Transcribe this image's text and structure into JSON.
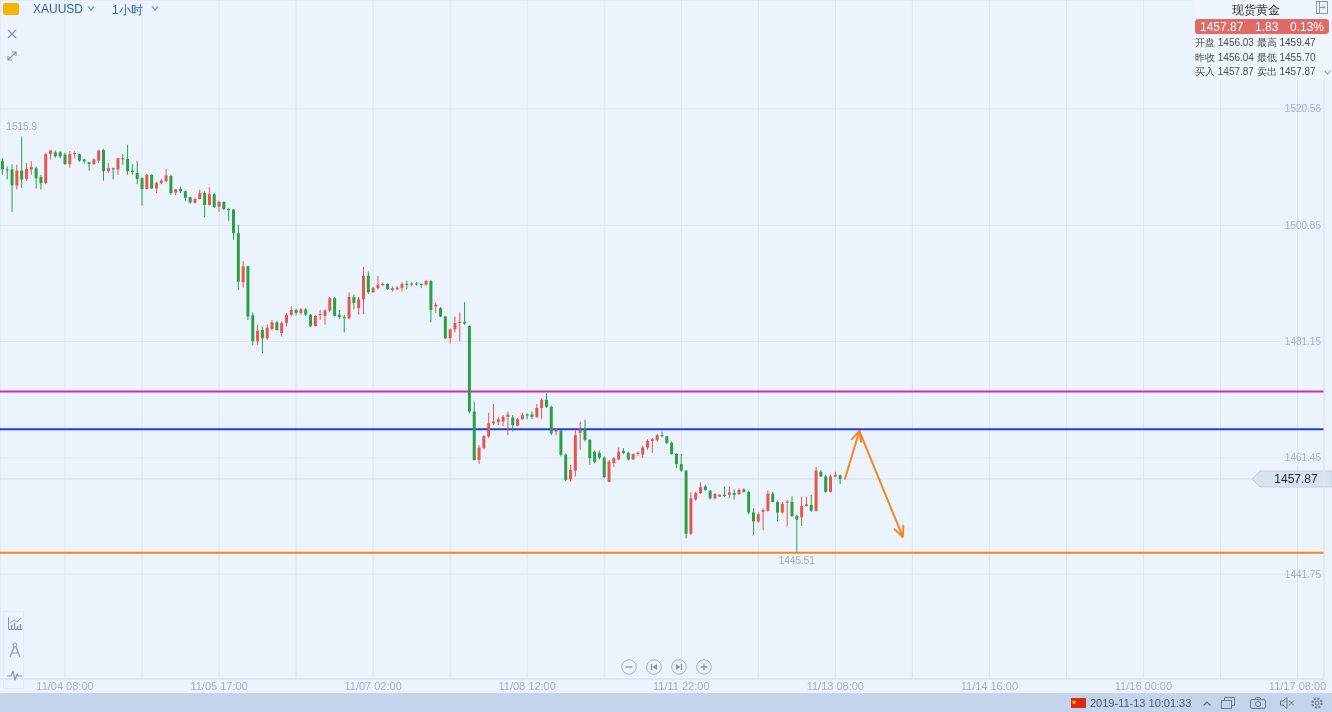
{
  "chart_data": {
    "type": "candlestick",
    "title": "XAUUSD",
    "subtitle": "1小时",
    "categories": [
      null,
      null,
      null,
      null,
      null,
      null,
      null,
      null,
      null,
      null,
      null,
      null,
      null,
      "11/04 08:00",
      null,
      null,
      null,
      null,
      null,
      null,
      null,
      null,
      null,
      null,
      null,
      null,
      null,
      null,
      null,
      null,
      null,
      null,
      null,
      null,
      null,
      null,
      null,
      null,
      null,
      null,
      null,
      null,
      null,
      null,
      null,
      "11/05 17:00",
      null,
      null,
      null,
      null,
      null,
      null,
      null,
      null,
      null,
      null,
      null,
      null,
      null,
      null,
      null,
      null,
      null,
      null,
      null,
      null,
      null,
      null,
      null,
      null,
      null,
      null,
      null,
      null,
      null,
      null,
      null,
      "11/07 02:00",
      null,
      null,
      null,
      null,
      null,
      null,
      null,
      null,
      null,
      null,
      null,
      null,
      null,
      null,
      null,
      null,
      null,
      null,
      null,
      null,
      null,
      null,
      null,
      null,
      null,
      null,
      null,
      null,
      null,
      null,
      null,
      "11/08 12:00",
      null,
      null,
      null,
      null,
      null,
      null,
      null,
      null,
      null,
      null,
      null,
      null,
      null,
      null,
      null,
      null,
      null,
      null,
      null,
      null,
      null,
      null,
      null,
      null,
      null,
      null,
      null,
      null,
      null,
      null,
      null,
      "11/11 22:00",
      null,
      null,
      null,
      null,
      null,
      null,
      null,
      null,
      null,
      null,
      null,
      null,
      null,
      null,
      null,
      null,
      null,
      null,
      null,
      null,
      null,
      null,
      null,
      null,
      null,
      null,
      null,
      null,
      null,
      null,
      null,
      "11/13 08:00",
      null,
      null,
      null,
      null,
      null,
      null,
      null,
      null,
      null,
      null,
      null,
      null,
      null,
      null,
      null,
      null,
      null,
      null,
      null,
      null,
      null,
      null,
      null,
      null,
      null,
      null,
      null,
      null,
      null,
      null,
      null,
      "11/14 16:00",
      null,
      null,
      null,
      null,
      null,
      null,
      null,
      null,
      null,
      null,
      null,
      null,
      null,
      null,
      null,
      null,
      null,
      null,
      null,
      null,
      null,
      null,
      null,
      null,
      null,
      null,
      null,
      null,
      null,
      null,
      null,
      "11/16 00:00",
      null,
      null,
      null,
      null,
      null,
      null,
      null,
      null,
      null,
      null,
      null,
      null,
      null,
      null,
      null,
      null,
      null,
      null,
      null,
      null,
      null,
      null,
      null,
      null,
      null,
      null,
      null,
      null,
      null,
      null,
      null,
      "11/17 08:00",
      null,
      null,
      null,
      null,
      null
    ],
    "ohlc": [
      [
        1511.7,
        1512.2,
        1509.4,
        1510.3
      ],
      [
        1510.3,
        1510.8,
        1508.6,
        1510.2
      ],
      [
        1510.3,
        1511.2,
        1503.1,
        1507.6
      ],
      [
        1507.6,
        1511.1,
        1506.9,
        1510.1
      ],
      [
        1510.1,
        1515.9,
        1507.1,
        1508.6
      ],
      [
        1508.7,
        1511.4,
        1508.3,
        1510.4
      ],
      [
        1510.3,
        1511.7,
        1509.4,
        1510.7
      ],
      [
        1510.5,
        1510.8,
        1507.1,
        1508.8
      ],
      [
        1509.0,
        1509.4,
        1506.9,
        1508.0
      ],
      [
        1508.0,
        1513.1,
        1507.8,
        1512.9
      ],
      [
        1512.9,
        1513.6,
        1512.0,
        1513.5
      ],
      [
        1513.2,
        1513.5,
        1512.3,
        1512.5
      ],
      [
        1513.2,
        1513.4,
        1512.2,
        1512.5
      ],
      [
        1512.8,
        1513.1,
        1511.1,
        1511.2
      ],
      [
        1511.2,
        1513.4,
        1510.6,
        1512.9
      ],
      [
        1512.9,
        1513.4,
        1512.2,
        1513.1
      ],
      [
        1512.9,
        1513.0,
        1511.6,
        1511.8
      ],
      [
        1512.0,
        1512.1,
        1511.3,
        1511.7
      ],
      [
        1511.5,
        1511.6,
        1510.1,
        1511.2
      ],
      [
        1511.2,
        1512.2,
        1511.1,
        1512.0
      ],
      [
        1511.8,
        1513.6,
        1511.4,
        1513.5
      ],
      [
        1513.6,
        1513.8,
        1508.4,
        1510.0
      ],
      [
        1510.0,
        1511.4,
        1509.7,
        1510.5
      ],
      [
        1510.5,
        1510.6,
        1508.6,
        1510.3
      ],
      [
        1510.3,
        1512.3,
        1509.4,
        1512.2
      ],
      [
        1512.2,
        1512.9,
        1511.1,
        1512.1
      ],
      [
        1512.1,
        1514.5,
        1509.4,
        1510.0
      ],
      [
        1510.1,
        1511.2,
        1509.4,
        1509.9
      ],
      [
        1509.7,
        1511.7,
        1507.8,
        1508.7
      ],
      [
        1508.8,
        1509.0,
        1504.2,
        1507.0
      ],
      [
        1507.0,
        1509.5,
        1506.9,
        1509.4
      ],
      [
        1509.4,
        1509.5,
        1507.0,
        1507.1
      ],
      [
        1507.1,
        1508.2,
        1506.3,
        1508.0
      ],
      [
        1508.0,
        1508.7,
        1507.8,
        1508.4
      ],
      [
        1508.3,
        1510.4,
        1508.2,
        1509.3
      ],
      [
        1509.2,
        1509.4,
        1506.0,
        1506.3
      ],
      [
        1506.4,
        1507.0,
        1505.9,
        1506.9
      ],
      [
        1507.0,
        1507.4,
        1506.3,
        1506.6
      ],
      [
        1506.6,
        1506.7,
        1505.0,
        1505.5
      ],
      [
        1505.6,
        1505.7,
        1504.5,
        1504.7
      ],
      [
        1504.7,
        1505.5,
        1504.5,
        1505.3
      ],
      [
        1505.3,
        1506.9,
        1505.2,
        1506.3
      ],
      [
        1506.3,
        1506.6,
        1502.2,
        1504.3
      ],
      [
        1504.3,
        1507.3,
        1504.2,
        1506.1
      ],
      [
        1506.1,
        1506.3,
        1503.8,
        1503.9
      ],
      [
        1504.0,
        1505.0,
        1503.1,
        1504.8
      ],
      [
        1504.8,
        1504.9,
        1503.4,
        1503.6
      ],
      [
        1503.6,
        1503.8,
        1501.6,
        1503.4
      ],
      [
        1503.5,
        1503.6,
        1498.4,
        1499.5
      ],
      [
        1499.5,
        1500.9,
        1489.9,
        1491.3
      ],
      [
        1491.2,
        1494.8,
        1490.3,
        1493.9
      ],
      [
        1493.9,
        1494.0,
        1484.8,
        1485.4
      ],
      [
        1485.6,
        1486.1,
        1480.5,
        1481.2
      ],
      [
        1481.2,
        1484.0,
        1480.6,
        1483.0
      ],
      [
        1483.1,
        1483.7,
        1479.2,
        1481.7
      ],
      [
        1481.7,
        1484.0,
        1481.4,
        1483.5
      ],
      [
        1483.3,
        1484.8,
        1483.0,
        1484.4
      ],
      [
        1484.4,
        1484.6,
        1483.0,
        1483.1
      ],
      [
        1482.6,
        1484.6,
        1482.0,
        1484.3
      ],
      [
        1484.3,
        1486.0,
        1483.7,
        1485.7
      ],
      [
        1485.7,
        1487.1,
        1485.4,
        1486.5
      ],
      [
        1486.5,
        1486.7,
        1485.6,
        1486.0
      ],
      [
        1486.0,
        1486.8,
        1485.7,
        1486.6
      ],
      [
        1486.6,
        1486.8,
        1485.5,
        1485.7
      ],
      [
        1485.7,
        1485.8,
        1483.6,
        1483.8
      ],
      [
        1483.8,
        1485.7,
        1483.7,
        1485.5
      ],
      [
        1485.7,
        1486.5,
        1484.8,
        1485.8
      ],
      [
        1485.5,
        1486.6,
        1484.0,
        1486.4
      ],
      [
        1486.4,
        1488.7,
        1486.1,
        1488.5
      ],
      [
        1488.5,
        1488.7,
        1485.4,
        1485.5
      ],
      [
        1485.7,
        1486.5,
        1484.9,
        1485.3
      ],
      [
        1485.3,
        1485.7,
        1482.7,
        1485.1
      ],
      [
        1485.1,
        1489.5,
        1484.9,
        1488.7
      ],
      [
        1488.7,
        1489.1,
        1486.6,
        1487.7
      ],
      [
        1486.8,
        1488.7,
        1485.7,
        1488.3
      ],
      [
        1488.3,
        1493.8,
        1485.8,
        1492.3
      ],
      [
        1492.3,
        1493.0,
        1489.2,
        1489.5
      ],
      [
        1489.5,
        1490.4,
        1489.4,
        1490.2
      ],
      [
        1490.2,
        1492.3,
        1490.0,
        1490.8
      ],
      [
        1490.8,
        1491.2,
        1490.5,
        1490.9
      ],
      [
        1490.9,
        1491.0,
        1489.9,
        1490.0
      ],
      [
        1489.9,
        1490.5,
        1489.6,
        1490.2
      ],
      [
        1490.0,
        1490.5,
        1489.9,
        1490.3
      ],
      [
        1490.2,
        1491.2,
        1489.6,
        1490.9
      ],
      [
        1490.9,
        1491.5,
        1490.0,
        1490.8
      ],
      [
        1490.8,
        1491.2,
        1490.5,
        1491.0
      ],
      [
        1491.0,
        1491.2,
        1490.6,
        1490.9
      ],
      [
        1490.9,
        1491.0,
        1490.2,
        1490.8
      ],
      [
        1490.8,
        1491.6,
        1490.6,
        1491.4
      ],
      [
        1491.4,
        1491.6,
        1484.4,
        1486.5
      ],
      [
        1487.1,
        1487.8,
        1486.0,
        1487.4
      ],
      [
        1486.8,
        1487.0,
        1485.3,
        1485.4
      ],
      [
        1485.4,
        1485.5,
        1481.6,
        1481.7
      ],
      [
        1481.7,
        1483.4,
        1480.8,
        1483.2
      ],
      [
        1483.2,
        1485.4,
        1482.7,
        1484.3
      ],
      [
        1484.3,
        1486.1,
        1481.2,
        1484.5
      ],
      [
        1484.5,
        1487.8,
        1484.0,
        1484.2
      ],
      [
        1483.8,
        1483.9,
        1469.0,
        1469.3
      ],
      [
        1469.3,
        1471.0,
        1461.0,
        1461.1
      ],
      [
        1461.1,
        1463.6,
        1460.4,
        1463.2
      ],
      [
        1463.1,
        1465.3,
        1462.9,
        1465.1
      ],
      [
        1465.1,
        1469.1,
        1464.8,
        1467.3
      ],
      [
        1467.3,
        1470.6,
        1467.0,
        1467.6
      ],
      [
        1467.5,
        1468.4,
        1467.0,
        1468.0
      ],
      [
        1467.6,
        1468.7,
        1466.8,
        1468.4
      ],
      [
        1468.4,
        1469.3,
        1465.3,
        1468.8
      ],
      [
        1468.3,
        1468.7,
        1465.9,
        1467.0
      ],
      [
        1466.9,
        1468.2,
        1466.8,
        1468.0
      ],
      [
        1468.0,
        1469.0,
        1467.9,
        1468.7
      ],
      [
        1468.8,
        1469.0,
        1468.0,
        1468.6
      ],
      [
        1468.8,
        1469.3,
        1468.0,
        1468.4
      ],
      [
        1468.4,
        1470.6,
        1468.2,
        1469.9
      ],
      [
        1469.9,
        1471.6,
        1468.0,
        1471.3
      ],
      [
        1471.3,
        1472.4,
        1469.9,
        1470.1
      ],
      [
        1470.1,
        1470.3,
        1465.3,
        1465.6
      ],
      [
        1465.9,
        1466.5,
        1465.3,
        1466.2
      ],
      [
        1466.1,
        1466.2,
        1461.7,
        1462.0
      ],
      [
        1462.0,
        1462.2,
        1457.5,
        1457.7
      ],
      [
        1457.8,
        1460.3,
        1457.4,
        1459.4
      ],
      [
        1459.3,
        1466.2,
        1458.3,
        1465.3
      ],
      [
        1465.7,
        1467.6,
        1462.8,
        1466.2
      ],
      [
        1466.2,
        1467.9,
        1464.2,
        1464.5
      ],
      [
        1464.5,
        1464.6,
        1460.3,
        1461.4
      ],
      [
        1462.5,
        1462.7,
        1460.5,
        1460.8
      ],
      [
        1462.3,
        1462.7,
        1461.2,
        1461.5
      ],
      [
        1461.5,
        1461.7,
        1458.0,
        1458.2
      ],
      [
        1457.4,
        1461.1,
        1457.3,
        1460.8
      ],
      [
        1460.6,
        1461.6,
        1459.9,
        1461.4
      ],
      [
        1461.2,
        1463.2,
        1461.1,
        1462.5
      ],
      [
        1462.6,
        1463.1,
        1462.1,
        1462.3
      ],
      [
        1462.3,
        1462.5,
        1461.0,
        1461.2
      ],
      [
        1461.2,
        1462.2,
        1461.1,
        1462.1
      ],
      [
        1462.1,
        1462.5,
        1461.8,
        1462.3
      ],
      [
        1462.0,
        1463.5,
        1461.4,
        1463.2
      ],
      [
        1463.2,
        1464.6,
        1462.8,
        1464.3
      ],
      [
        1464.3,
        1464.8,
        1462.3,
        1464.6
      ],
      [
        1464.5,
        1465.5,
        1464.2,
        1465.3
      ],
      [
        1465.3,
        1465.9,
        1464.9,
        1465.2
      ],
      [
        1465.1,
        1465.2,
        1463.8,
        1464.0
      ],
      [
        1464.0,
        1464.2,
        1462.0,
        1462.1
      ],
      [
        1462.1,
        1462.3,
        1459.7,
        1460.4
      ],
      [
        1460.4,
        1462.1,
        1459.1,
        1459.3
      ],
      [
        1459.3,
        1459.4,
        1447.8,
        1448.6
      ],
      [
        1448.6,
        1455.6,
        1448.4,
        1454.6
      ],
      [
        1454.4,
        1455.7,
        1454.2,
        1455.5
      ],
      [
        1455.5,
        1457.3,
        1455.3,
        1456.5
      ],
      [
        1456.6,
        1456.9,
        1455.9,
        1456.0
      ],
      [
        1455.9,
        1456.0,
        1454.4,
        1454.6
      ],
      [
        1454.6,
        1455.5,
        1454.4,
        1455.3
      ],
      [
        1454.9,
        1455.3,
        1454.8,
        1455.2
      ],
      [
        1455.2,
        1456.6,
        1454.8,
        1455.0
      ],
      [
        1455.2,
        1456.6,
        1454.6,
        1455.6
      ],
      [
        1455.5,
        1456.1,
        1454.4,
        1455.2
      ],
      [
        1455.3,
        1456.3,
        1455.2,
        1456.0
      ],
      [
        1456.1,
        1456.3,
        1455.6,
        1455.7
      ],
      [
        1455.7,
        1455.9,
        1451.9,
        1452.2
      ],
      [
        1452.2,
        1452.9,
        1448.4,
        1450.7
      ],
      [
        1450.7,
        1452.2,
        1450.5,
        1451.9
      ],
      [
        1452.3,
        1452.9,
        1449.2,
        1452.6
      ],
      [
        1452.5,
        1455.9,
        1452.3,
        1455.4
      ],
      [
        1455.4,
        1455.7,
        1453.9,
        1454.0
      ],
      [
        1454.0,
        1454.2,
        1450.7,
        1452.2
      ],
      [
        1452.2,
        1454.0,
        1452.0,
        1453.7
      ],
      [
        1453.9,
        1454.4,
        1449.8,
        1454.0
      ],
      [
        1454.0,
        1454.9,
        1451.4,
        1451.6
      ],
      [
        1451.6,
        1451.8,
        1445.51,
        1451.0
      ],
      [
        1451.4,
        1454.9,
        1449.9,
        1453.3
      ],
      [
        1453.3,
        1454.9,
        1453.2,
        1453.6
      ],
      [
        1453.5,
        1455.2,
        1452.3,
        1452.5
      ],
      [
        1452.5,
        1459.9,
        1452.3,
        1459.3
      ],
      [
        1459.1,
        1459.4,
        1458.2,
        1458.3
      ],
      [
        1458.3,
        1458.6,
        1455.6,
        1455.7
      ],
      [
        1455.7,
        1458.6,
        1455.6,
        1458.3
      ],
      [
        1458.3,
        1459.1,
        1458.2,
        1458.6
      ],
      [
        1458.5,
        1458.6,
        1457.0,
        1457.87
      ],
      null,
      null,
      null,
      null,
      null,
      null,
      null,
      null,
      null,
      null,
      null,
      null,
      null,
      null,
      null,
      null,
      null,
      null,
      null,
      null,
      null,
      null,
      null,
      null,
      null,
      null,
      null,
      null,
      null,
      null,
      null,
      null,
      null,
      null,
      null,
      null,
      null,
      null,
      null,
      null,
      null,
      null,
      null,
      null,
      null,
      null,
      null,
      null,
      null,
      null,
      null,
      null,
      null,
      null,
      null,
      null,
      null,
      null,
      null,
      null,
      null,
      null,
      null,
      null,
      null,
      null,
      null,
      null,
      null,
      null,
      null,
      null,
      null,
      null,
      null,
      null,
      null,
      null,
      null,
      null,
      null,
      null,
      null,
      null,
      null,
      null,
      null,
      null,
      null,
      null,
      null,
      null,
      null,
      null,
      null,
      null,
      null,
      null,
      null,
      null
    ],
    "colors": [
      "#2e9e45",
      "#2e9e45",
      "#2e9e45",
      "#e5564f",
      "#2e9e45",
      "#e5564f",
      "#e5564f",
      "#2e9e45",
      "#2e9e45",
      "#e5564f",
      "#e5564f",
      "#2e9e45",
      "#2e9e45",
      "#2e9e45",
      "#e5564f",
      "#e5564f",
      "#2e9e45",
      "#2e9e45",
      "#2e9e45",
      "#e5564f",
      "#e5564f",
      "#2e9e45",
      "#e5564f",
      "#2e9e45",
      "#e5564f",
      "#2e9e45",
      "#2e9e45",
      "#2e9e45",
      "#2e9e45",
      "#2e9e45",
      "#e5564f",
      "#2e9e45",
      "#e5564f",
      "#e5564f",
      "#e5564f",
      "#2e9e45",
      "#e5564f",
      "#2e9e45",
      "#2e9e45",
      "#2e9e45",
      "#e5564f",
      "#e5564f",
      "#2e9e45",
      "#e5564f",
      "#2e9e45",
      "#e5564f",
      "#2e9e45",
      "#2e9e45",
      "#2e9e45",
      "#2e9e45",
      "#e5564f",
      "#2e9e45",
      "#2e9e45",
      "#e5564f",
      "#2e9e45",
      "#e5564f",
      "#e5564f",
      "#2e9e45",
      "#e5564f",
      "#e5564f",
      "#e5564f",
      "#2e9e45",
      "#e5564f",
      "#2e9e45",
      "#2e9e45",
      "#e5564f",
      "#e5564f",
      "#e5564f",
      "#e5564f",
      "#2e9e45",
      "#2e9e45",
      "#2e9e45",
      "#e5564f",
      "#2e9e45",
      "#e5564f",
      "#e5564f",
      "#2e9e45",
      "#e5564f",
      "#e5564f",
      "#e5564f",
      "#2e9e45",
      "#e5564f",
      "#e5564f",
      "#e5564f",
      "#2e9e45",
      "#e5564f",
      "#2e9e45",
      "#2e9e45",
      "#e5564f",
      "#2e9e45",
      "#e5564f",
      "#2e9e45",
      "#2e9e45",
      "#e5564f",
      "#e5564f",
      "#e5564f",
      "#2e9e45",
      "#2e9e45",
      "#2e9e45",
      "#e5564f",
      "#e5564f",
      "#e5564f",
      "#e5564f",
      "#e5564f",
      "#e5564f",
      "#e5564f",
      "#2e9e45",
      "#e5564f",
      "#e5564f",
      "#2e9e45",
      "#2e9e45",
      "#e5564f",
      "#e5564f",
      "#2e9e45",
      "#2e9e45",
      "#e5564f",
      "#2e9e45",
      "#2e9e45",
      "#e5564f",
      "#e5564f",
      "#e5564f",
      "#2e9e45",
      "#2e9e45",
      "#2e9e45",
      "#2e9e45",
      "#2e9e45",
      "#e5564f",
      "#e5564f",
      "#e5564f",
      "#2e9e45",
      "#2e9e45",
      "#e5564f",
      "#e5564f",
      "#e5564f",
      "#e5564f",
      "#e5564f",
      "#e5564f",
      "#2e9e45",
      "#2e9e45",
      "#2e9e45",
      "#2e9e45",
      "#2e9e45",
      "#2e9e45",
      "#e5564f",
      "#e5564f",
      "#e5564f",
      "#2e9e45",
      "#2e9e45",
      "#e5564f",
      "#e5564f",
      "#2e9e45",
      "#e5564f",
      "#2e9e45",
      "#e5564f",
      "#2e9e45",
      "#2e9e45",
      "#2e9e45",
      "#e5564f",
      "#e5564f",
      "#e5564f",
      "#2e9e45",
      "#2e9e45",
      "#e5564f",
      "#e5564f",
      "#2e9e45",
      "#2e9e45",
      "#e5564f",
      "#e5564f",
      "#2e9e45",
      "#e5564f",
      "#2e9e45",
      "#2e9e45",
      "#e5564f",
      "#e5564f",
      "#2e9e45",
      null,
      null,
      null,
      null,
      null,
      null,
      null,
      null,
      null,
      null,
      null,
      null,
      null,
      null,
      null,
      null,
      null,
      null,
      null,
      null,
      null,
      null,
      null,
      null,
      null,
      null,
      null,
      null,
      null,
      null,
      null,
      null,
      null,
      null,
      null,
      null,
      null,
      null,
      null,
      null,
      null,
      null,
      null,
      null,
      null,
      null,
      null,
      null,
      null,
      null,
      null,
      null,
      null,
      null,
      null,
      null,
      null,
      null,
      null,
      null,
      null,
      null,
      null,
      null,
      null,
      null,
      null,
      null,
      null,
      null,
      null,
      null,
      null,
      null,
      null,
      null,
      null,
      null,
      null,
      null,
      null,
      null,
      null,
      null,
      null,
      null,
      null,
      null,
      null,
      null,
      null,
      null,
      null,
      null,
      null,
      null,
      null,
      null,
      null,
      null
    ],
    "series": [
      {
        "type": "line",
        "color": "#f7861e",
        "values": [
          null,
          null,
          null,
          null,
          null,
          null,
          null,
          null,
          null,
          null,
          null,
          null,
          null,
          null,
          null,
          null,
          null,
          null,
          null,
          null,
          null,
          null,
          null,
          null,
          null,
          null,
          null,
          null,
          null,
          null,
          null,
          null,
          null,
          null,
          null,
          null,
          null,
          null,
          null,
          null,
          null,
          null,
          null,
          null,
          null,
          null,
          null,
          null,
          null,
          null,
          null,
          null,
          null,
          null,
          null,
          null,
          null,
          null,
          null,
          null,
          null,
          null,
          null,
          null,
          null,
          null,
          null,
          null,
          null,
          null,
          null,
          null,
          null,
          null,
          null,
          null,
          null,
          null,
          null,
          null,
          null,
          null,
          null,
          null,
          null,
          null,
          null,
          null,
          null,
          null,
          null,
          null,
          null,
          null,
          null,
          null,
          null,
          null,
          null,
          null,
          null,
          null,
          null,
          null,
          null,
          null,
          null,
          null,
          null,
          null,
          null,
          null,
          null,
          null,
          null,
          null,
          null,
          null,
          null,
          null,
          null,
          null,
          null,
          null,
          null,
          null,
          null,
          null,
          null,
          null,
          null,
          null,
          null,
          null,
          null,
          null,
          null,
          null,
          null,
          null,
          null,
          null,
          null,
          null,
          null,
          null,
          null,
          null,
          null,
          null,
          null,
          null,
          null,
          null,
          null,
          null,
          null,
          null,
          null,
          null,
          null,
          null,
          null,
          null,
          null,
          null,
          null,
          null,
          null,
          null,
          null,
          null,
          null,
          null,
          null,
          1457.9,
          null,
          null,
          1466.0,
          null,
          null,
          null,
          null,
          null,
          null,
          null,
          null,
          null,
          null,
          null,
          null,
          null,
          null,
          null,
          null,
          null,
          null,
          null,
          null,
          null,
          null,
          null,
          null,
          null,
          null,
          null,
          null,
          null,
          null,
          null,
          null,
          null,
          null,
          null,
          null,
          null,
          null,
          null,
          null,
          null,
          null,
          null,
          null,
          null,
          null,
          null,
          null,
          null,
          null,
          null,
          null,
          null,
          null,
          null,
          null,
          null,
          null,
          null,
          null,
          null,
          null,
          null,
          null,
          null,
          null,
          null,
          null,
          null,
          null,
          null,
          null,
          null,
          null,
          null,
          null,
          null,
          null,
          null,
          null,
          null,
          null,
          null,
          null,
          null,
          null,
          null,
          null,
          null,
          null,
          null,
          null,
          null,
          null,
          null,
          null
        ]
      },
      {
        "type": "line",
        "color": "#f7861e",
        "values": [
          null,
          null,
          null,
          null,
          null,
          null,
          null,
          null,
          null,
          null,
          null,
          null,
          null,
          null,
          null,
          null,
          null,
          null,
          null,
          null,
          null,
          null,
          null,
          null,
          null,
          null,
          null,
          null,
          null,
          null,
          null,
          null,
          null,
          null,
          null,
          null,
          null,
          null,
          null,
          null,
          null,
          null,
          null,
          null,
          null,
          null,
          null,
          null,
          null,
          null,
          null,
          null,
          null,
          null,
          null,
          null,
          null,
          null,
          null,
          null,
          null,
          null,
          null,
          null,
          null,
          null,
          null,
          null,
          null,
          null,
          null,
          null,
          null,
          null,
          null,
          null,
          null,
          null,
          null,
          null,
          null,
          null,
          null,
          null,
          null,
          null,
          null,
          null,
          null,
          null,
          null,
          null,
          null,
          null,
          null,
          null,
          null,
          null,
          null,
          null,
          null,
          null,
          null,
          null,
          null,
          null,
          null,
          null,
          null,
          null,
          null,
          null,
          null,
          null,
          null,
          null,
          null,
          null,
          null,
          null,
          null,
          null,
          null,
          null,
          null,
          null,
          null,
          null,
          null,
          null,
          null,
          null,
          null,
          null,
          null,
          null,
          null,
          null,
          null,
          null,
          null,
          null,
          null,
          null,
          null,
          null,
          null,
          null,
          null,
          null,
          null,
          null,
          null,
          null,
          null,
          null,
          null,
          null,
          null,
          null,
          null,
          null,
          null,
          null,
          null,
          null,
          null,
          null,
          null,
          null,
          null,
          null,
          null,
          null,
          null,
          null,
          null,
          null,
          1466.0,
          null,
          null,
          null,
          null,
          null,
          null,
          null,
          null,
          1448.1,
          null,
          null,
          null,
          null,
          null,
          null,
          null,
          null,
          null,
          null,
          null,
          null,
          null,
          null,
          null,
          null,
          null,
          null,
          null,
          null,
          null,
          null,
          null,
          null,
          null,
          null,
          null,
          null,
          null,
          null,
          null,
          null,
          null,
          null,
          null,
          null,
          null,
          null,
          null,
          null,
          null,
          null,
          null,
          null,
          null,
          null,
          null,
          null,
          null,
          null,
          null,
          null,
          null,
          null,
          null,
          null,
          null,
          null,
          null,
          null,
          null,
          null,
          null,
          null,
          null,
          null,
          null,
          null,
          null,
          null,
          null,
          null,
          null,
          null,
          null,
          null,
          null,
          null,
          null,
          null,
          null,
          null,
          null,
          null,
          null,
          null,
          null
        ]
      }
    ],
    "ylim": [
      1424,
      1539
    ],
    "yticks": [
      1441.75,
      1461.45,
      1481.15,
      1500.85,
      1520.56
    ],
    "grid": true,
    "ref_lines": [
      {
        "axis": "y",
        "value": 1472.7,
        "color": "#c52fc8"
      },
      {
        "axis": "y",
        "value": 1466.3,
        "color": "#1f3fe6"
      },
      {
        "axis": "y",
        "value": 1445.4,
        "color": "#f7861e"
      },
      {
        "axis": "y",
        "value": 1457.87,
        "label": "1457.87",
        "color": "#d2dce7"
      }
    ],
    "annotations": [
      "现货黄金",
      "1457.87",
      "1.83",
      "0.13%",
      "开盘 1456.03 最高 1459.47",
      "昨收 1456.04 最低 1455.70",
      "买入 1457.87 卖出 1457.87",
      "2019-11-13 10:01:33",
      {
        "text": "1515.9",
        "y": 1515.9
      },
      {
        "text": "1445.51",
        "y": 1445.51
      }
    ]
  }
}
